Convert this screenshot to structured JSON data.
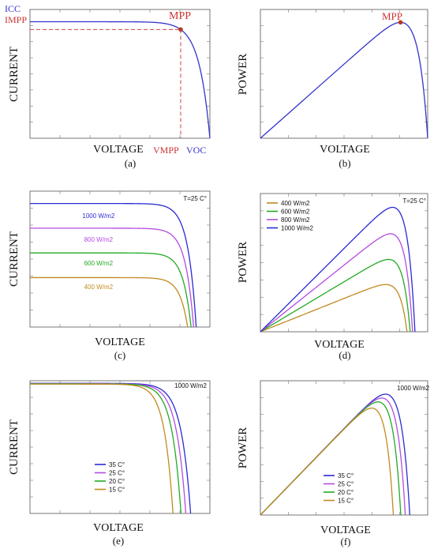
{
  "chart_data": [
    {
      "id": "a",
      "type": "line",
      "caption": "(a)",
      "xlabel": "VOLTAGE",
      "ylabel": "CURRENT",
      "xlim": [
        0,
        1
      ],
      "ylim": [
        0,
        1.05
      ],
      "series": [
        {
          "color": "#3333cc",
          "isc": 1.0,
          "voc": 1.0,
          "k": 0.06
        }
      ],
      "mpp": {
        "label": "MPP",
        "x": 0.865,
        "y": 0.942
      },
      "labels": {
        "icc": "ICC",
        "impp": "IMPP",
        "vmpp": "VMPP",
        "voc": "VOC"
      },
      "grid": "ticks only"
    },
    {
      "id": "b",
      "type": "line",
      "caption": "(b)",
      "xlabel": "VOLTAGE",
      "ylabel": "POWER",
      "xlim": [
        0,
        1
      ],
      "ylim": [
        0,
        1.05
      ],
      "series": [
        {
          "color": "#3333cc",
          "isc": 1.0,
          "voc": 1.0,
          "k": 0.06
        }
      ],
      "mpp": {
        "label": "MPP",
        "x": 0.865,
        "y": 0.942
      }
    },
    {
      "id": "c",
      "type": "line",
      "caption": "(c)",
      "xlabel": "VOLTAGE",
      "ylabel": "CURRENT",
      "xlim": [
        0,
        1.05
      ],
      "ylim": [
        0,
        1.1
      ],
      "annotation": "T=25 C°",
      "series": [
        {
          "name": "1000 W/m2",
          "color": "#2a2ad4",
          "isc": 1.0,
          "voc": 0.97,
          "k": 0.05
        },
        {
          "name": "800 W/m2",
          "color": "#b44be0",
          "isc": 0.8,
          "voc": 0.955,
          "k": 0.05
        },
        {
          "name": "600 W/m2",
          "color": "#22aa22",
          "isc": 0.6,
          "voc": 0.94,
          "k": 0.05
        },
        {
          "name": "400 W/m2",
          "color": "#c08a1e",
          "isc": 0.4,
          "voc": 0.92,
          "k": 0.05
        }
      ]
    },
    {
      "id": "d",
      "type": "line",
      "caption": "(d)",
      "xlabel": "VOLTAGE",
      "ylabel": "POWER",
      "xlim": [
        0,
        1.05
      ],
      "ylim": [
        0,
        1.0
      ],
      "annotation": "T=25 C°",
      "legend_position": "top-left",
      "series": [
        {
          "name": "400 W/m2",
          "color": "#c08a1e",
          "isc": 0.4,
          "voc": 0.92,
          "k": 0.05
        },
        {
          "name": "600 W/m2",
          "color": "#22aa22",
          "isc": 0.6,
          "voc": 0.94,
          "k": 0.05
        },
        {
          "name": "800 W/m2",
          "color": "#b44be0",
          "isc": 0.8,
          "voc": 0.955,
          "k": 0.05
        },
        {
          "name": "1000 W/m2",
          "color": "#2a2ad4",
          "isc": 1.0,
          "voc": 0.97,
          "k": 0.05
        }
      ]
    },
    {
      "id": "e",
      "type": "line",
      "caption": "(e)",
      "xlabel": "VOLTAGE",
      "ylabel": "CURRENT",
      "xlim": [
        0,
        1.12
      ],
      "ylim": [
        0,
        1.02
      ],
      "annotation": "1000 W/m2",
      "legend_position": "bottom-left",
      "series": [
        {
          "name": "35 C°",
          "color": "#2a2ad4",
          "isc": 1.0,
          "voc": 1.0,
          "k": 0.06
        },
        {
          "name": "25 C°",
          "color": "#b44be0",
          "isc": 0.998,
          "voc": 0.97,
          "k": 0.06
        },
        {
          "name": "20 C°",
          "color": "#22aa22",
          "isc": 0.996,
          "voc": 0.94,
          "k": 0.06
        },
        {
          "name": "15 C°",
          "color": "#c08a1e",
          "isc": 0.994,
          "voc": 0.89,
          "k": 0.06
        }
      ]
    },
    {
      "id": "f",
      "type": "line",
      "caption": "(f)",
      "xlabel": "VOLTAGE",
      "ylabel": "POWER",
      "xlim": [
        0,
        1.12
      ],
      "ylim": [
        0,
        1.0
      ],
      "annotation": "1000 W/m2",
      "legend_position": "bottom-left",
      "series": [
        {
          "name": "35 C°",
          "color": "#2a2ad4",
          "isc": 1.0,
          "voc": 1.0,
          "k": 0.06
        },
        {
          "name": "25 C°",
          "color": "#b44be0",
          "isc": 0.998,
          "voc": 0.97,
          "k": 0.06
        },
        {
          "name": "20 C°",
          "color": "#22aa22",
          "isc": 0.996,
          "voc": 0.94,
          "k": 0.06
        },
        {
          "name": "15 C°",
          "color": "#c08a1e",
          "isc": 0.994,
          "voc": 0.89,
          "k": 0.06
        }
      ]
    }
  ]
}
